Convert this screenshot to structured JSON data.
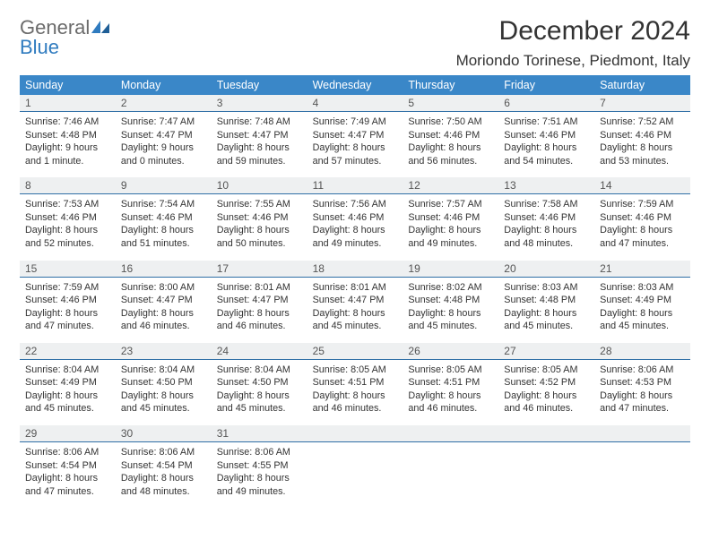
{
  "logo": {
    "general": "General",
    "blue": "Blue"
  },
  "title": "December 2024",
  "location": "Moriondo Torinese, Piedmont, Italy",
  "colors": {
    "header_bg": "#3a87c8",
    "header_text": "#ffffff",
    "daynum_bg": "#eef0f1",
    "daynum_border": "#2f6fa6",
    "body_text": "#333333",
    "page_bg": "#ffffff",
    "logo_gray": "#6b6b6b",
    "logo_blue": "#2f7bbf"
  },
  "day_headers": [
    "Sunday",
    "Monday",
    "Tuesday",
    "Wednesday",
    "Thursday",
    "Friday",
    "Saturday"
  ],
  "weeks": [
    [
      {
        "num": "1",
        "sunrise": "Sunrise: 7:46 AM",
        "sunset": "Sunset: 4:48 PM",
        "daylight": "Daylight: 9 hours and 1 minute."
      },
      {
        "num": "2",
        "sunrise": "Sunrise: 7:47 AM",
        "sunset": "Sunset: 4:47 PM",
        "daylight": "Daylight: 9 hours and 0 minutes."
      },
      {
        "num": "3",
        "sunrise": "Sunrise: 7:48 AM",
        "sunset": "Sunset: 4:47 PM",
        "daylight": "Daylight: 8 hours and 59 minutes."
      },
      {
        "num": "4",
        "sunrise": "Sunrise: 7:49 AM",
        "sunset": "Sunset: 4:47 PM",
        "daylight": "Daylight: 8 hours and 57 minutes."
      },
      {
        "num": "5",
        "sunrise": "Sunrise: 7:50 AM",
        "sunset": "Sunset: 4:46 PM",
        "daylight": "Daylight: 8 hours and 56 minutes."
      },
      {
        "num": "6",
        "sunrise": "Sunrise: 7:51 AM",
        "sunset": "Sunset: 4:46 PM",
        "daylight": "Daylight: 8 hours and 54 minutes."
      },
      {
        "num": "7",
        "sunrise": "Sunrise: 7:52 AM",
        "sunset": "Sunset: 4:46 PM",
        "daylight": "Daylight: 8 hours and 53 minutes."
      }
    ],
    [
      {
        "num": "8",
        "sunrise": "Sunrise: 7:53 AM",
        "sunset": "Sunset: 4:46 PM",
        "daylight": "Daylight: 8 hours and 52 minutes."
      },
      {
        "num": "9",
        "sunrise": "Sunrise: 7:54 AM",
        "sunset": "Sunset: 4:46 PM",
        "daylight": "Daylight: 8 hours and 51 minutes."
      },
      {
        "num": "10",
        "sunrise": "Sunrise: 7:55 AM",
        "sunset": "Sunset: 4:46 PM",
        "daylight": "Daylight: 8 hours and 50 minutes."
      },
      {
        "num": "11",
        "sunrise": "Sunrise: 7:56 AM",
        "sunset": "Sunset: 4:46 PM",
        "daylight": "Daylight: 8 hours and 49 minutes."
      },
      {
        "num": "12",
        "sunrise": "Sunrise: 7:57 AM",
        "sunset": "Sunset: 4:46 PM",
        "daylight": "Daylight: 8 hours and 49 minutes."
      },
      {
        "num": "13",
        "sunrise": "Sunrise: 7:58 AM",
        "sunset": "Sunset: 4:46 PM",
        "daylight": "Daylight: 8 hours and 48 minutes."
      },
      {
        "num": "14",
        "sunrise": "Sunrise: 7:59 AM",
        "sunset": "Sunset: 4:46 PM",
        "daylight": "Daylight: 8 hours and 47 minutes."
      }
    ],
    [
      {
        "num": "15",
        "sunrise": "Sunrise: 7:59 AM",
        "sunset": "Sunset: 4:46 PM",
        "daylight": "Daylight: 8 hours and 47 minutes."
      },
      {
        "num": "16",
        "sunrise": "Sunrise: 8:00 AM",
        "sunset": "Sunset: 4:47 PM",
        "daylight": "Daylight: 8 hours and 46 minutes."
      },
      {
        "num": "17",
        "sunrise": "Sunrise: 8:01 AM",
        "sunset": "Sunset: 4:47 PM",
        "daylight": "Daylight: 8 hours and 46 minutes."
      },
      {
        "num": "18",
        "sunrise": "Sunrise: 8:01 AM",
        "sunset": "Sunset: 4:47 PM",
        "daylight": "Daylight: 8 hours and 45 minutes."
      },
      {
        "num": "19",
        "sunrise": "Sunrise: 8:02 AM",
        "sunset": "Sunset: 4:48 PM",
        "daylight": "Daylight: 8 hours and 45 minutes."
      },
      {
        "num": "20",
        "sunrise": "Sunrise: 8:03 AM",
        "sunset": "Sunset: 4:48 PM",
        "daylight": "Daylight: 8 hours and 45 minutes."
      },
      {
        "num": "21",
        "sunrise": "Sunrise: 8:03 AM",
        "sunset": "Sunset: 4:49 PM",
        "daylight": "Daylight: 8 hours and 45 minutes."
      }
    ],
    [
      {
        "num": "22",
        "sunrise": "Sunrise: 8:04 AM",
        "sunset": "Sunset: 4:49 PM",
        "daylight": "Daylight: 8 hours and 45 minutes."
      },
      {
        "num": "23",
        "sunrise": "Sunrise: 8:04 AM",
        "sunset": "Sunset: 4:50 PM",
        "daylight": "Daylight: 8 hours and 45 minutes."
      },
      {
        "num": "24",
        "sunrise": "Sunrise: 8:04 AM",
        "sunset": "Sunset: 4:50 PM",
        "daylight": "Daylight: 8 hours and 45 minutes."
      },
      {
        "num": "25",
        "sunrise": "Sunrise: 8:05 AM",
        "sunset": "Sunset: 4:51 PM",
        "daylight": "Daylight: 8 hours and 46 minutes."
      },
      {
        "num": "26",
        "sunrise": "Sunrise: 8:05 AM",
        "sunset": "Sunset: 4:51 PM",
        "daylight": "Daylight: 8 hours and 46 minutes."
      },
      {
        "num": "27",
        "sunrise": "Sunrise: 8:05 AM",
        "sunset": "Sunset: 4:52 PM",
        "daylight": "Daylight: 8 hours and 46 minutes."
      },
      {
        "num": "28",
        "sunrise": "Sunrise: 8:06 AM",
        "sunset": "Sunset: 4:53 PM",
        "daylight": "Daylight: 8 hours and 47 minutes."
      }
    ],
    [
      {
        "num": "29",
        "sunrise": "Sunrise: 8:06 AM",
        "sunset": "Sunset: 4:54 PM",
        "daylight": "Daylight: 8 hours and 47 minutes."
      },
      {
        "num": "30",
        "sunrise": "Sunrise: 8:06 AM",
        "sunset": "Sunset: 4:54 PM",
        "daylight": "Daylight: 8 hours and 48 minutes."
      },
      {
        "num": "31",
        "sunrise": "Sunrise: 8:06 AM",
        "sunset": "Sunset: 4:55 PM",
        "daylight": "Daylight: 8 hours and 49 minutes."
      },
      null,
      null,
      null,
      null
    ]
  ]
}
